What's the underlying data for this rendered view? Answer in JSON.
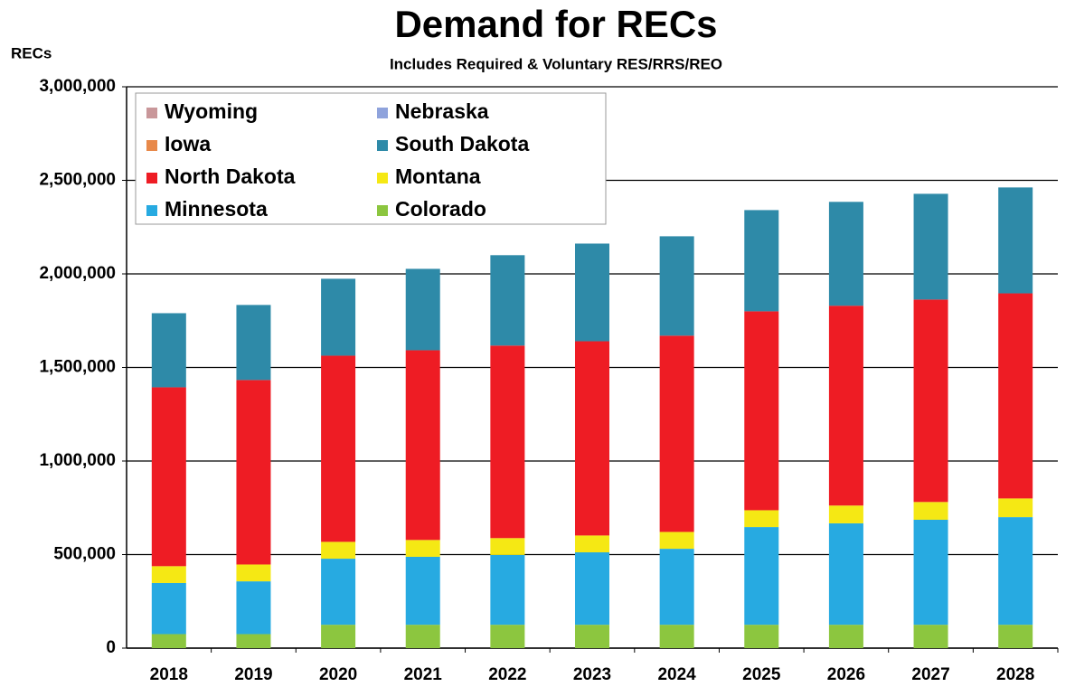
{
  "chart_data": {
    "type": "stacked_bar",
    "title": "Demand for RECs",
    "subtitle": "Includes Required & Voluntary RES/RRS/REO",
    "y_label": "RECs",
    "categories": [
      "2018",
      "2019",
      "2020",
      "2021",
      "2022",
      "2023",
      "2024",
      "2025",
      "2026",
      "2027",
      "2028"
    ],
    "series": [
      {
        "name": "Wyoming",
        "color": "#c9979a",
        "values": [
          0,
          0,
          0,
          0,
          0,
          0,
          0,
          0,
          0,
          0,
          0
        ]
      },
      {
        "name": "Nebraska",
        "color": "#8fa3dc",
        "values": [
          0,
          0,
          0,
          0,
          0,
          0,
          0,
          0,
          0,
          0,
          0
        ]
      },
      {
        "name": "Iowa",
        "color": "#e8894a",
        "values": [
          0,
          0,
          0,
          0,
          0,
          0,
          0,
          0,
          0,
          0,
          0
        ]
      },
      {
        "name": "South Dakota",
        "color": "#2e8aa8",
        "values": [
          396000,
          401000,
          411000,
          435000,
          483000,
          522000,
          531000,
          541000,
          555000,
          565000,
          566000
        ]
      },
      {
        "name": "North Dakota",
        "color": "#ee1c24",
        "values": [
          956000,
          986000,
          995000,
          1014000,
          1029000,
          1038000,
          1049000,
          1063000,
          1068000,
          1082000,
          1096000
        ]
      },
      {
        "name": "Montana",
        "color": "#f5e814",
        "values": [
          90000,
          90000,
          90000,
          90000,
          90000,
          90000,
          90000,
          90000,
          95000,
          95000,
          100000
        ]
      },
      {
        "name": "Minnesota",
        "color": "#27aae1",
        "values": [
          273000,
          282000,
          353000,
          363000,
          373000,
          387000,
          406000,
          522000,
          542000,
          561000,
          575000
        ]
      },
      {
        "name": "Colorado",
        "color": "#8cc63f",
        "values": [
          75000,
          75000,
          125000,
          125000,
          125000,
          125000,
          125000,
          125000,
          125000,
          125000,
          125000
        ]
      }
    ],
    "ylim": [
      0,
      3000000
    ],
    "yticks": [
      0,
      {
        "value": 500000,
        "label": "500,000"
      },
      {
        "value": 1000000,
        "label": "1,000,000"
      },
      {
        "value": 1500000,
        "label": "1,500,000"
      },
      {
        "value": 2000000,
        "label": "2,000,000"
      },
      {
        "value": 2500000,
        "label": "2,500,000"
      },
      {
        "value": 3000000,
        "label": "3,000,000"
      }
    ],
    "grid": true
  }
}
